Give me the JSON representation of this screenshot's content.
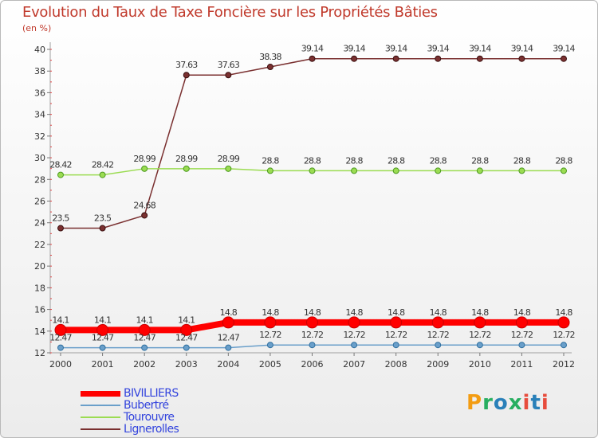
{
  "title": "Evolution du Taux de Taxe Foncière sur les Propriétés Bâties",
  "subtitle": "(en %)",
  "logo": {
    "text": "Proxiti",
    "colors": [
      "#f39c12",
      "#27ae60",
      "#2980b9",
      "#e74c3c"
    ]
  },
  "chart_data": {
    "type": "line",
    "title": "Evolution du Taux de Taxe Foncière sur les Propriétés Bâties",
    "ylabel": "(en %)",
    "xlabel": "",
    "x": [
      "2000",
      "2001",
      "2002",
      "2003",
      "2004",
      "2005",
      "2006",
      "2007",
      "2008",
      "2009",
      "2010",
      "2011",
      "2012"
    ],
    "ylim": [
      12,
      40
    ],
    "yticks": [
      12,
      14,
      16,
      18,
      20,
      22,
      24,
      26,
      28,
      30,
      32,
      34,
      36,
      38,
      40
    ],
    "grid": false,
    "legend_position": "bottom-left",
    "series": [
      {
        "name": "BIVILLIERS",
        "color": "#ff0000",
        "label_color": "#333333",
        "values": [
          14.1,
          14.1,
          14.1,
          14.1,
          14.8,
          14.8,
          14.8,
          14.8,
          14.8,
          14.8,
          14.8,
          14.8,
          14.8
        ],
        "labels": [
          "14.1",
          "14.1",
          "14.1",
          "14.1",
          "14.8",
          "14.8",
          "14.8",
          "14.8",
          "14.8",
          "14.8",
          "14.8",
          "14.8",
          "14.8"
        ]
      },
      {
        "name": "Bubertré",
        "color": "#6a9fca",
        "label_color": "#333333",
        "values": [
          12.47,
          12.47,
          12.47,
          12.47,
          12.47,
          12.72,
          12.72,
          12.72,
          12.72,
          12.72,
          12.72,
          12.72,
          12.72
        ],
        "labels": [
          "12.47",
          "12.47",
          "12.47",
          "12.47",
          "12.47",
          "12.72",
          "12.72",
          "12.72",
          "12.72",
          "12.72",
          "12.72",
          "12.72",
          "12.72"
        ]
      },
      {
        "name": "Tourouvre",
        "color": "#9bdc52",
        "label_color": "#333333",
        "values": [
          28.42,
          28.42,
          28.99,
          28.99,
          28.99,
          28.8,
          28.8,
          28.8,
          28.8,
          28.8,
          28.8,
          28.8,
          28.8
        ],
        "labels": [
          "28.42",
          "28.42",
          "28.99",
          "28.99",
          "28.99",
          "28.8",
          "28.8",
          "28.8",
          "28.8",
          "28.8",
          "28.8",
          "28.8",
          "28.8"
        ]
      },
      {
        "name": "Lignerolles",
        "color": "#7a3030",
        "label_color": "#333333",
        "values": [
          23.5,
          23.5,
          24.68,
          37.63,
          37.63,
          38.38,
          39.14,
          39.14,
          39.14,
          39.14,
          39.14,
          39.14,
          39.14
        ],
        "labels": [
          "23.5",
          "23.5",
          "24.68",
          "37.63",
          "37.63",
          "38.38",
          "39.14",
          "39.14",
          "39.14",
          "39.14",
          "39.14",
          "39.14",
          "39.14"
        ]
      }
    ]
  }
}
